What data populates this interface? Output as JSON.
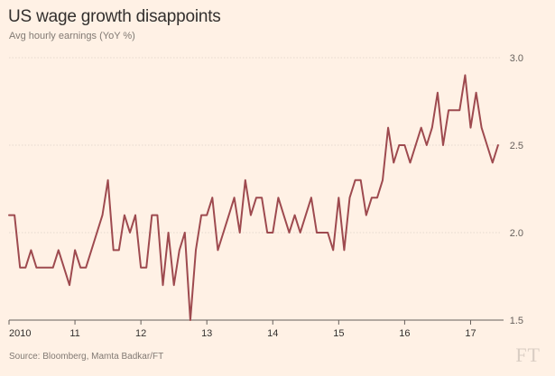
{
  "title": "US wage growth disappoints",
  "subtitle": "Avg hourly earnings (YoY %)",
  "source": "Source: Bloomberg, Mamta Badkar/FT",
  "logo_text": "FT",
  "colors": {
    "background": "#fff1e5",
    "line": "#9e4a4f",
    "grid": "#e6d9ce",
    "axis": "#66605c"
  },
  "chart_data": {
    "type": "line",
    "title": "US wage growth disappoints",
    "subtitle": "Avg hourly earnings (YoY %)",
    "xlabel": "",
    "ylabel": "",
    "xlim": [
      2010.0,
      2017.5
    ],
    "ylim": [
      1.5,
      3.0
    ],
    "y_ticks": [
      1.5,
      2.0,
      2.5,
      3.0
    ],
    "y_tick_labels": [
      "1.5",
      "2.0",
      "2.5",
      "3.0"
    ],
    "x_ticks": [
      2010,
      2011,
      2012,
      2013,
      2014,
      2015,
      2016,
      2017
    ],
    "x_tick_labels": [
      "2010",
      "11",
      "12",
      "13",
      "14",
      "15",
      "16",
      "17"
    ],
    "grid": true,
    "series": [
      {
        "values": [
          2.1,
          2.1,
          1.8,
          1.8,
          1.9,
          1.8,
          1.8,
          1.8,
          1.8,
          1.9,
          1.8,
          1.7,
          1.9,
          1.8,
          1.8,
          1.9,
          2.0,
          2.1,
          2.3,
          1.9,
          1.9,
          2.1,
          2.0,
          2.1,
          1.8,
          1.8,
          2.1,
          2.1,
          1.7,
          2.0,
          1.7,
          1.9,
          2.0,
          1.5,
          1.9,
          2.1,
          2.1,
          2.2,
          1.9,
          2.0,
          2.1,
          2.2,
          2.0,
          2.3,
          2.1,
          2.2,
          2.2,
          2.0,
          2.0,
          2.2,
          2.1,
          2.0,
          2.1,
          2.0,
          2.1,
          2.2,
          2.0,
          2.0,
          2.0,
          1.9,
          2.2,
          1.9,
          2.2,
          2.3,
          2.3,
          2.1,
          2.2,
          2.2,
          2.3,
          2.6,
          2.4,
          2.5,
          2.5,
          2.4,
          2.5,
          2.6,
          2.5,
          2.6,
          2.8,
          2.5,
          2.7,
          2.7,
          2.7,
          2.9,
          2.6,
          2.8,
          2.6,
          2.5,
          2.4,
          2.5
        ],
        "x_start": "2010-01",
        "frequency": "monthly"
      }
    ]
  }
}
